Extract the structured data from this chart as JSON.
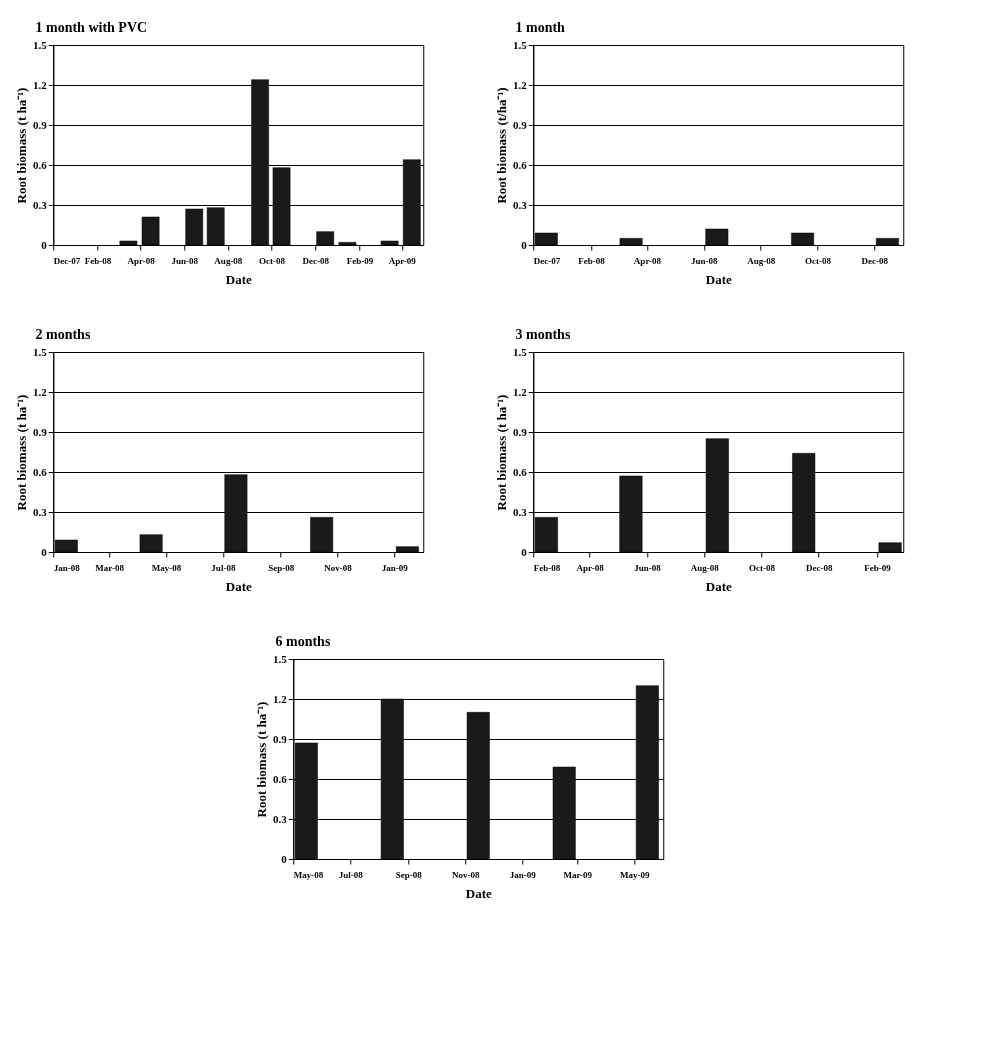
{
  "chart_data": [
    {
      "type": "bar",
      "title": "1 month with PVC",
      "xlabel": "Date",
      "ylabel": "Root biomass (t ha⁻¹)",
      "x": [
        "2008-03-15",
        "2008-04-15",
        "2008-06-15",
        "2008-07-15",
        "2008-09-15",
        "2008-10-15",
        "2008-12-15",
        "2009-01-15",
        "2009-03-15",
        "2009-04-15"
      ],
      "values": [
        0.03,
        0.21,
        0.27,
        0.28,
        1.24,
        0.58,
        0.1,
        0.02,
        0.03,
        0.64
      ],
      "color": "#1a1a1a",
      "xlim": [
        "2007-12-01",
        "2009-05-01"
      ],
      "xticks": [
        {
          "value": "2007-12-01",
          "label": "Dec-07"
        },
        {
          "value": "2008-02-01",
          "label": "Feb-08"
        },
        {
          "value": "2008-04-01",
          "label": "Apr-08"
        },
        {
          "value": "2008-06-01",
          "label": "Jun-08"
        },
        {
          "value": "2008-08-01",
          "label": "Aug-08"
        },
        {
          "value": "2008-10-01",
          "label": "Oct-08"
        },
        {
          "value": "2008-12-01",
          "label": "Dec-08"
        },
        {
          "value": "2009-02-01",
          "label": "Feb-09"
        },
        {
          "value": "2009-04-01",
          "label": "Apr-09"
        }
      ],
      "ylim": [
        0,
        1.5
      ],
      "yticks": [
        0,
        0.3,
        0.6,
        0.9,
        1.2,
        1.5
      ],
      "grid": "y"
    },
    {
      "type": "bar",
      "title": "1 month",
      "xlabel": "Date",
      "ylabel": "Root biomass (t/ha⁻¹)",
      "x": [
        "2007-12-15",
        "2008-03-15",
        "2008-06-15",
        "2008-09-15",
        "2008-12-15"
      ],
      "values": [
        0.09,
        0.05,
        0.12,
        0.09,
        0.05
      ],
      "color": "#1a1a1a",
      "xlim": [
        "2007-12-01",
        "2009-01-01"
      ],
      "xticks": [
        {
          "value": "2007-12-01",
          "label": "Dec-07"
        },
        {
          "value": "2008-02-01",
          "label": "Feb-08"
        },
        {
          "value": "2008-04-01",
          "label": "Apr-08"
        },
        {
          "value": "2008-06-01",
          "label": "Jun-08"
        },
        {
          "value": "2008-08-01",
          "label": "Aug-08"
        },
        {
          "value": "2008-10-01",
          "label": "Oct-08"
        },
        {
          "value": "2008-12-01",
          "label": "Dec-08"
        }
      ],
      "ylim": [
        0,
        1.5
      ],
      "yticks": [
        0,
        0.3,
        0.6,
        0.9,
        1.2,
        1.5
      ],
      "grid": "y"
    },
    {
      "type": "bar",
      "title": "2 months",
      "xlabel": "Date",
      "ylabel": "Root biomass (t ha⁻¹)",
      "x": [
        "2008-01-15",
        "2008-04-15",
        "2008-07-15",
        "2008-10-15",
        "2009-01-15"
      ],
      "values": [
        0.09,
        0.13,
        0.58,
        0.26,
        0.04
      ],
      "color": "#1a1a1a",
      "xlim": [
        "2008-01-01",
        "2009-02-01"
      ],
      "xticks": [
        {
          "value": "2008-01-01",
          "label": "Jan-08"
        },
        {
          "value": "2008-03-01",
          "label": "Mar-08"
        },
        {
          "value": "2008-05-01",
          "label": "May-08"
        },
        {
          "value": "2008-07-01",
          "label": "Jul-08"
        },
        {
          "value": "2008-09-01",
          "label": "Sep-08"
        },
        {
          "value": "2008-11-01",
          "label": "Nov-08"
        },
        {
          "value": "2009-01-01",
          "label": "Jan-09"
        }
      ],
      "ylim": [
        0,
        1.5
      ],
      "yticks": [
        0,
        0.3,
        0.6,
        0.9,
        1.2,
        1.5
      ],
      "grid": "y"
    },
    {
      "type": "bar",
      "title": "3 months",
      "xlabel": "Date",
      "ylabel": "Root biomass (t ha⁻¹)",
      "x": [
        "2008-02-15",
        "2008-05-15",
        "2008-08-15",
        "2008-11-15",
        "2009-02-15"
      ],
      "values": [
        0.26,
        0.57,
        0.85,
        0.74,
        0.07
      ],
      "color": "#1a1a1a",
      "xlim": [
        "2008-02-01",
        "2009-03-01"
      ],
      "xticks": [
        {
          "value": "2008-02-01",
          "label": "Feb-08"
        },
        {
          "value": "2008-04-01",
          "label": "Apr-08"
        },
        {
          "value": "2008-06-01",
          "label": "Jun-08"
        },
        {
          "value": "2008-08-01",
          "label": "Aug-08"
        },
        {
          "value": "2008-10-01",
          "label": "Oct-08"
        },
        {
          "value": "2008-12-01",
          "label": "Dec-08"
        },
        {
          "value": "2009-02-01",
          "label": "Feb-09"
        }
      ],
      "ylim": [
        0,
        1.5
      ],
      "yticks": [
        0,
        0.3,
        0.6,
        0.9,
        1.2,
        1.5
      ],
      "grid": "y"
    },
    {
      "type": "bar",
      "title": "6 months",
      "xlabel": "Date",
      "ylabel": "Root biomass (t ha⁻¹)",
      "x": [
        "2008-05-15",
        "2008-08-15",
        "2008-11-15",
        "2009-02-15",
        "2009-05-15"
      ],
      "values": [
        0.87,
        1.2,
        1.1,
        0.69,
        1.3
      ],
      "color": "#1a1a1a",
      "xlim": [
        "2008-05-01",
        "2009-06-01"
      ],
      "xticks": [
        {
          "value": "2008-05-01",
          "label": "May-08"
        },
        {
          "value": "2008-07-01",
          "label": "Jul-08"
        },
        {
          "value": "2008-09-01",
          "label": "Sep-08"
        },
        {
          "value": "2008-11-01",
          "label": "Nov-08"
        },
        {
          "value": "2009-01-01",
          "label": "Jan-09"
        },
        {
          "value": "2009-03-01",
          "label": "Mar-09"
        },
        {
          "value": "2009-05-01",
          "label": "May-09"
        }
      ],
      "ylim": [
        0,
        1.5
      ],
      "yticks": [
        0,
        0.3,
        0.6,
        0.9,
        1.2,
        1.5
      ],
      "grid": "y"
    }
  ]
}
